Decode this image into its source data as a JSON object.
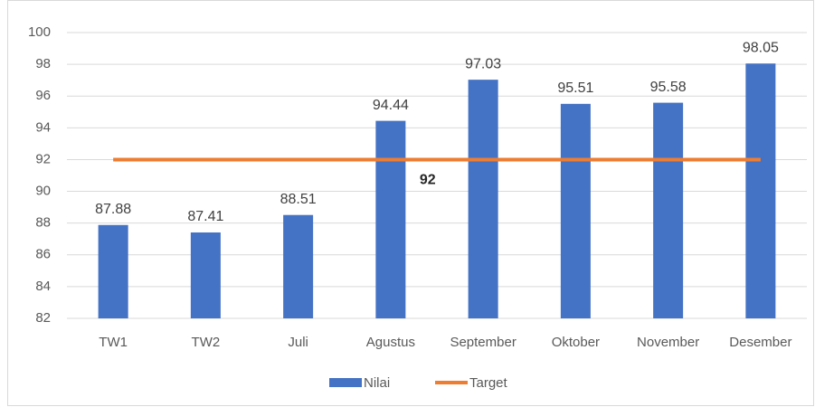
{
  "chart_data": {
    "type": "bar",
    "categories": [
      "TW1",
      "TW2",
      "Juli",
      "Agustus",
      "September",
      "Oktober",
      "November",
      "Desember"
    ],
    "series": [
      {
        "name": "Nilai",
        "type": "bar",
        "color": "#4472c4",
        "values": [
          87.88,
          87.41,
          88.51,
          94.44,
          97.03,
          95.51,
          95.58,
          98.05
        ],
        "data_labels": true
      },
      {
        "name": "Target",
        "type": "line",
        "color": "#ed7d31",
        "values": [
          92,
          92,
          92,
          92,
          92,
          92,
          92,
          92
        ],
        "value_labels": [
          null,
          null,
          null,
          "92",
          null,
          null,
          null,
          null
        ]
      }
    ],
    "ylim": [
      82,
      100
    ],
    "yticks": [
      82,
      84,
      86,
      88,
      90,
      92,
      94,
      96,
      98,
      100
    ],
    "grid": true,
    "legend": "bottom"
  }
}
